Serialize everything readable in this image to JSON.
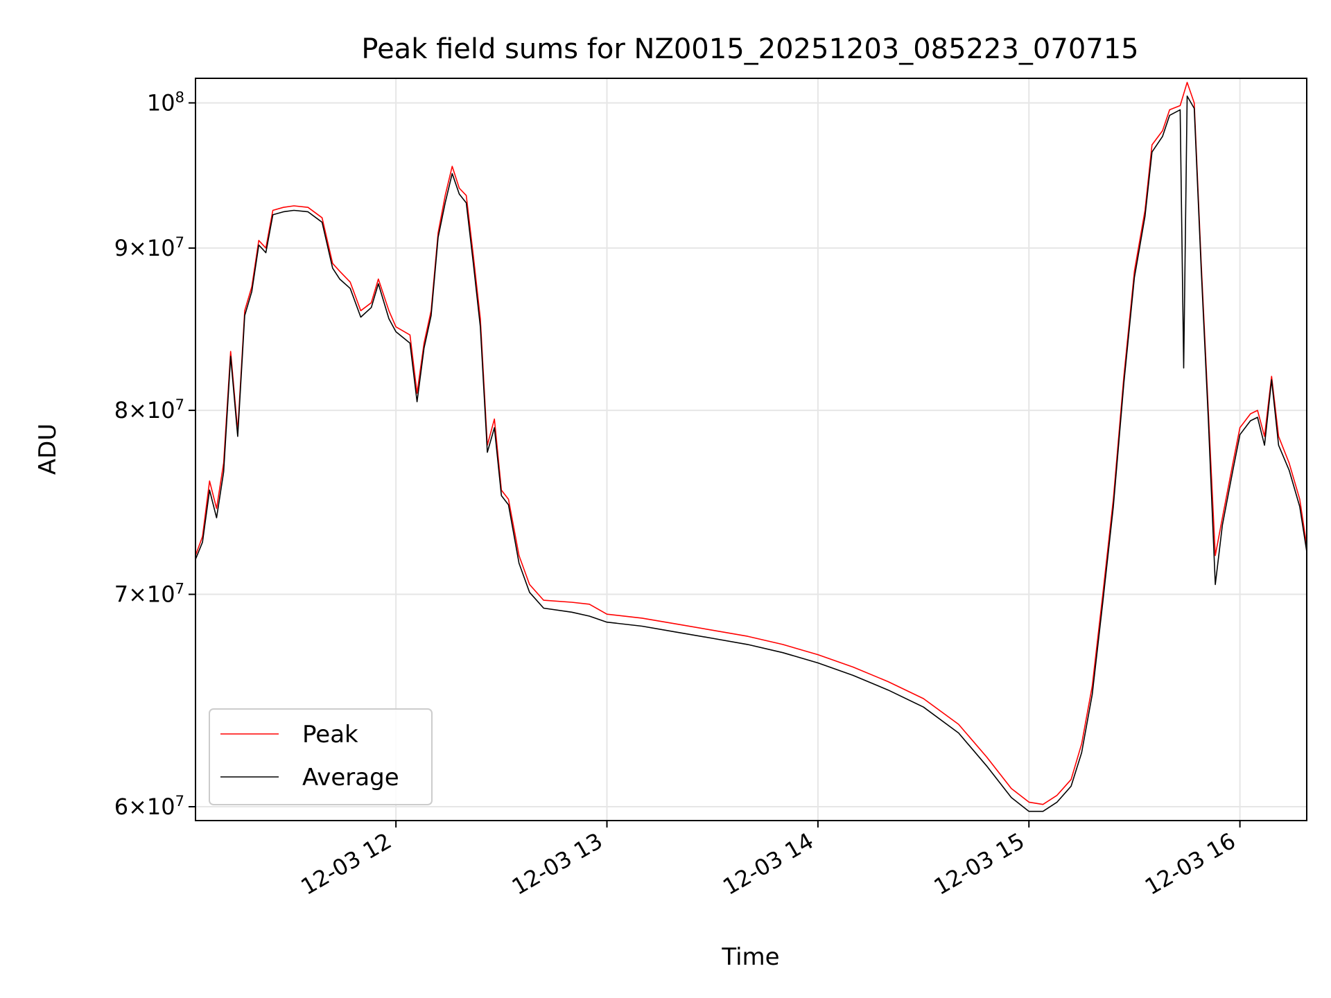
{
  "chart_data": {
    "type": "line",
    "title": "Peak field sums for NZ0015_20251203_085223_070715",
    "xlabel": "Time",
    "ylabel": "ADU",
    "x_scale": "time",
    "y_scale": "log",
    "xlim": [
      "2025-12-03 11:03",
      "2025-12-03 16:19"
    ],
    "ylim": [
      59400000,
      101800000
    ],
    "grid": true,
    "legend_position": "lower-left",
    "x_ticks": [
      {
        "value": "2025-12-03 12:00",
        "label": "12-03 12"
      },
      {
        "value": "2025-12-03 13:00",
        "label": "12-03 13"
      },
      {
        "value": "2025-12-03 14:00",
        "label": "12-03 14"
      },
      {
        "value": "2025-12-03 15:00",
        "label": "12-03 15"
      },
      {
        "value": "2025-12-03 16:00",
        "label": "12-03 16"
      }
    ],
    "y_ticks": [
      {
        "value": 60000000,
        "mantissa": "6",
        "times": "×",
        "base": "10",
        "exp": "7"
      },
      {
        "value": 70000000,
        "mantissa": "7",
        "times": "×",
        "base": "10",
        "exp": "7"
      },
      {
        "value": 80000000,
        "mantissa": "8",
        "times": "×",
        "base": "10",
        "exp": "7"
      },
      {
        "value": 90000000,
        "mantissa": "9",
        "times": "×",
        "base": "10",
        "exp": "7"
      },
      {
        "value": 100000000,
        "mantissa": "",
        "times": "",
        "base": "10",
        "exp": "8"
      }
    ],
    "series": [
      {
        "name": "Peak",
        "color": "#ff0000",
        "points": [
          [
            "2025-12-03 11:03",
            72000000
          ],
          [
            "2025-12-03 11:05",
            73000000
          ],
          [
            "2025-12-03 11:07",
            76000000
          ],
          [
            "2025-12-03 11:09",
            74500000
          ],
          [
            "2025-12-03 11:11",
            77000000
          ],
          [
            "2025-12-03 11:13",
            83500000
          ],
          [
            "2025-12-03 11:15",
            78800000
          ],
          [
            "2025-12-03 11:17",
            86000000
          ],
          [
            "2025-12-03 11:19",
            87500000
          ],
          [
            "2025-12-03 11:21",
            90500000
          ],
          [
            "2025-12-03 11:23",
            90000000
          ],
          [
            "2025-12-03 11:25",
            92500000
          ],
          [
            "2025-12-03 11:28",
            92700000
          ],
          [
            "2025-12-03 11:31",
            92800000
          ],
          [
            "2025-12-03 11:35",
            92700000
          ],
          [
            "2025-12-03 11:39",
            92000000
          ],
          [
            "2025-12-03 11:42",
            89000000
          ],
          [
            "2025-12-03 11:44",
            88500000
          ],
          [
            "2025-12-03 11:47",
            87800000
          ],
          [
            "2025-12-03 11:50",
            86000000
          ],
          [
            "2025-12-03 11:53",
            86500000
          ],
          [
            "2025-12-03 11:55",
            88000000
          ],
          [
            "2025-12-03 11:58",
            86000000
          ],
          [
            "2025-12-03 12:00",
            85000000
          ],
          [
            "2025-12-03 12:04",
            84500000
          ],
          [
            "2025-12-03 12:06",
            81000000
          ],
          [
            "2025-12-03 12:08",
            84000000
          ],
          [
            "2025-12-03 12:10",
            86000000
          ],
          [
            "2025-12-03 12:12",
            91000000
          ],
          [
            "2025-12-03 12:14",
            93500000
          ],
          [
            "2025-12-03 12:16",
            95500000
          ],
          [
            "2025-12-03 12:18",
            94000000
          ],
          [
            "2025-12-03 12:20",
            93500000
          ],
          [
            "2025-12-03 12:22",
            89500000
          ],
          [
            "2025-12-03 12:24",
            85500000
          ],
          [
            "2025-12-03 12:26",
            78000000
          ],
          [
            "2025-12-03 12:28",
            79500000
          ],
          [
            "2025-12-03 12:30",
            75500000
          ],
          [
            "2025-12-03 12:32",
            75000000
          ],
          [
            "2025-12-03 12:35",
            72000000
          ],
          [
            "2025-12-03 12:38",
            70500000
          ],
          [
            "2025-12-03 12:42",
            69700000
          ],
          [
            "2025-12-03 12:50",
            69600000
          ],
          [
            "2025-12-03 12:55",
            69500000
          ],
          [
            "2025-12-03 13:00",
            69000000
          ],
          [
            "2025-12-03 13:10",
            68800000
          ],
          [
            "2025-12-03 13:20",
            68500000
          ],
          [
            "2025-12-03 13:30",
            68200000
          ],
          [
            "2025-12-03 13:40",
            67900000
          ],
          [
            "2025-12-03 13:50",
            67500000
          ],
          [
            "2025-12-03 14:00",
            67000000
          ],
          [
            "2025-12-03 14:10",
            66400000
          ],
          [
            "2025-12-03 14:20",
            65700000
          ],
          [
            "2025-12-03 14:30",
            64900000
          ],
          [
            "2025-12-03 14:40",
            63700000
          ],
          [
            "2025-12-03 14:48",
            62200000
          ],
          [
            "2025-12-03 14:55",
            60800000
          ],
          [
            "2025-12-03 15:00",
            60200000
          ],
          [
            "2025-12-03 15:04",
            60100000
          ],
          [
            "2025-12-03 15:08",
            60500000
          ],
          [
            "2025-12-03 15:12",
            61200000
          ],
          [
            "2025-12-03 15:15",
            62800000
          ],
          [
            "2025-12-03 15:18",
            65500000
          ],
          [
            "2025-12-03 15:21",
            70000000
          ],
          [
            "2025-12-03 15:24",
            75000000
          ],
          [
            "2025-12-03 15:27",
            82000000
          ],
          [
            "2025-12-03 15:30",
            88500000
          ],
          [
            "2025-12-03 15:33",
            92500000
          ],
          [
            "2025-12-03 15:35",
            97000000
          ],
          [
            "2025-12-03 15:38",
            98000000
          ],
          [
            "2025-12-03 15:40",
            99500000
          ],
          [
            "2025-12-03 15:43",
            99800000
          ],
          [
            "2025-12-03 15:45",
            101500000
          ],
          [
            "2025-12-03 15:47",
            100000000
          ],
          [
            "2025-12-03 15:49",
            89000000
          ],
          [
            "2025-12-03 15:51",
            80000000
          ],
          [
            "2025-12-03 15:53",
            72000000
          ],
          [
            "2025-12-03 15:55",
            74000000
          ],
          [
            "2025-12-03 15:58",
            77000000
          ],
          [
            "2025-12-03 16:00",
            79000000
          ],
          [
            "2025-12-03 16:03",
            79800000
          ],
          [
            "2025-12-03 16:05",
            80000000
          ],
          [
            "2025-12-03 16:07",
            78500000
          ],
          [
            "2025-12-03 16:09",
            82000000
          ],
          [
            "2025-12-03 16:11",
            78500000
          ],
          [
            "2025-12-03 16:14",
            77000000
          ],
          [
            "2025-12-03 16:17",
            75000000
          ],
          [
            "2025-12-03 16:19",
            72500000
          ]
        ]
      },
      {
        "name": "Average",
        "color": "#000000",
        "points": [
          [
            "2025-12-03 11:03",
            71800000
          ],
          [
            "2025-12-03 11:05",
            72700000
          ],
          [
            "2025-12-03 11:07",
            75500000
          ],
          [
            "2025-12-03 11:09",
            74000000
          ],
          [
            "2025-12-03 11:11",
            76500000
          ],
          [
            "2025-12-03 11:13",
            83200000
          ],
          [
            "2025-12-03 11:15",
            78500000
          ],
          [
            "2025-12-03 11:17",
            85700000
          ],
          [
            "2025-12-03 11:19",
            87200000
          ],
          [
            "2025-12-03 11:21",
            90200000
          ],
          [
            "2025-12-03 11:23",
            89700000
          ],
          [
            "2025-12-03 11:25",
            92200000
          ],
          [
            "2025-12-03 11:28",
            92400000
          ],
          [
            "2025-12-03 11:31",
            92500000
          ],
          [
            "2025-12-03 11:35",
            92400000
          ],
          [
            "2025-12-03 11:39",
            91700000
          ],
          [
            "2025-12-03 11:42",
            88700000
          ],
          [
            "2025-12-03 11:44",
            88000000
          ],
          [
            "2025-12-03 11:47",
            87400000
          ],
          [
            "2025-12-03 11:50",
            85600000
          ],
          [
            "2025-12-03 11:53",
            86200000
          ],
          [
            "2025-12-03 11:55",
            87700000
          ],
          [
            "2025-12-03 11:58",
            85500000
          ],
          [
            "2025-12-03 12:00",
            84700000
          ],
          [
            "2025-12-03 12:04",
            84000000
          ],
          [
            "2025-12-03 12:06",
            80500000
          ],
          [
            "2025-12-03 12:08",
            83700000
          ],
          [
            "2025-12-03 12:10",
            85700000
          ],
          [
            "2025-12-03 12:12",
            90700000
          ],
          [
            "2025-12-03 12:14",
            93000000
          ],
          [
            "2025-12-03 12:16",
            95000000
          ],
          [
            "2025-12-03 12:18",
            93600000
          ],
          [
            "2025-12-03 12:20",
            93000000
          ],
          [
            "2025-12-03 12:22",
            89000000
          ],
          [
            "2025-12-03 12:24",
            85000000
          ],
          [
            "2025-12-03 12:26",
            77600000
          ],
          [
            "2025-12-03 12:28",
            79000000
          ],
          [
            "2025-12-03 12:30",
            75200000
          ],
          [
            "2025-12-03 12:32",
            74700000
          ],
          [
            "2025-12-03 12:35",
            71600000
          ],
          [
            "2025-12-03 12:38",
            70100000
          ],
          [
            "2025-12-03 12:42",
            69300000
          ],
          [
            "2025-12-03 12:50",
            69100000
          ],
          [
            "2025-12-03 12:55",
            68900000
          ],
          [
            "2025-12-03 13:00",
            68600000
          ],
          [
            "2025-12-03 13:10",
            68400000
          ],
          [
            "2025-12-03 13:20",
            68100000
          ],
          [
            "2025-12-03 13:30",
            67800000
          ],
          [
            "2025-12-03 13:40",
            67500000
          ],
          [
            "2025-12-03 13:50",
            67100000
          ],
          [
            "2025-12-03 14:00",
            66600000
          ],
          [
            "2025-12-03 14:10",
            66000000
          ],
          [
            "2025-12-03 14:20",
            65300000
          ],
          [
            "2025-12-03 14:30",
            64500000
          ],
          [
            "2025-12-03 14:40",
            63300000
          ],
          [
            "2025-12-03 14:48",
            61800000
          ],
          [
            "2025-12-03 14:55",
            60400000
          ],
          [
            "2025-12-03 15:00",
            59800000
          ],
          [
            "2025-12-03 15:04",
            59800000
          ],
          [
            "2025-12-03 15:08",
            60200000
          ],
          [
            "2025-12-03 15:12",
            60900000
          ],
          [
            "2025-12-03 15:15",
            62400000
          ],
          [
            "2025-12-03 15:18",
            65100000
          ],
          [
            "2025-12-03 15:21",
            69600000
          ],
          [
            "2025-12-03 15:24",
            74600000
          ],
          [
            "2025-12-03 15:27",
            81600000
          ],
          [
            "2025-12-03 15:30",
            88100000
          ],
          [
            "2025-12-03 15:33",
            92100000
          ],
          [
            "2025-12-03 15:35",
            96500000
          ],
          [
            "2025-12-03 15:38",
            97600000
          ],
          [
            "2025-12-03 15:40",
            99100000
          ],
          [
            "2025-12-03 15:43",
            99500000
          ],
          [
            "2025-12-03 15:44",
            82500000
          ],
          [
            "2025-12-03 15:45",
            100500000
          ],
          [
            "2025-12-03 15:47",
            99600000
          ],
          [
            "2025-12-03 15:49",
            88600000
          ],
          [
            "2025-12-03 15:51",
            79500000
          ],
          [
            "2025-12-03 15:53",
            70500000
          ],
          [
            "2025-12-03 15:55",
            73600000
          ],
          [
            "2025-12-03 15:58",
            76600000
          ],
          [
            "2025-12-03 16:00",
            78600000
          ],
          [
            "2025-12-03 16:03",
            79400000
          ],
          [
            "2025-12-03 16:05",
            79600000
          ],
          [
            "2025-12-03 16:07",
            78000000
          ],
          [
            "2025-12-03 16:09",
            81800000
          ],
          [
            "2025-12-03 16:11",
            78000000
          ],
          [
            "2025-12-03 16:14",
            76600000
          ],
          [
            "2025-12-03 16:17",
            74600000
          ],
          [
            "2025-12-03 16:19",
            72200000
          ]
        ]
      }
    ]
  }
}
